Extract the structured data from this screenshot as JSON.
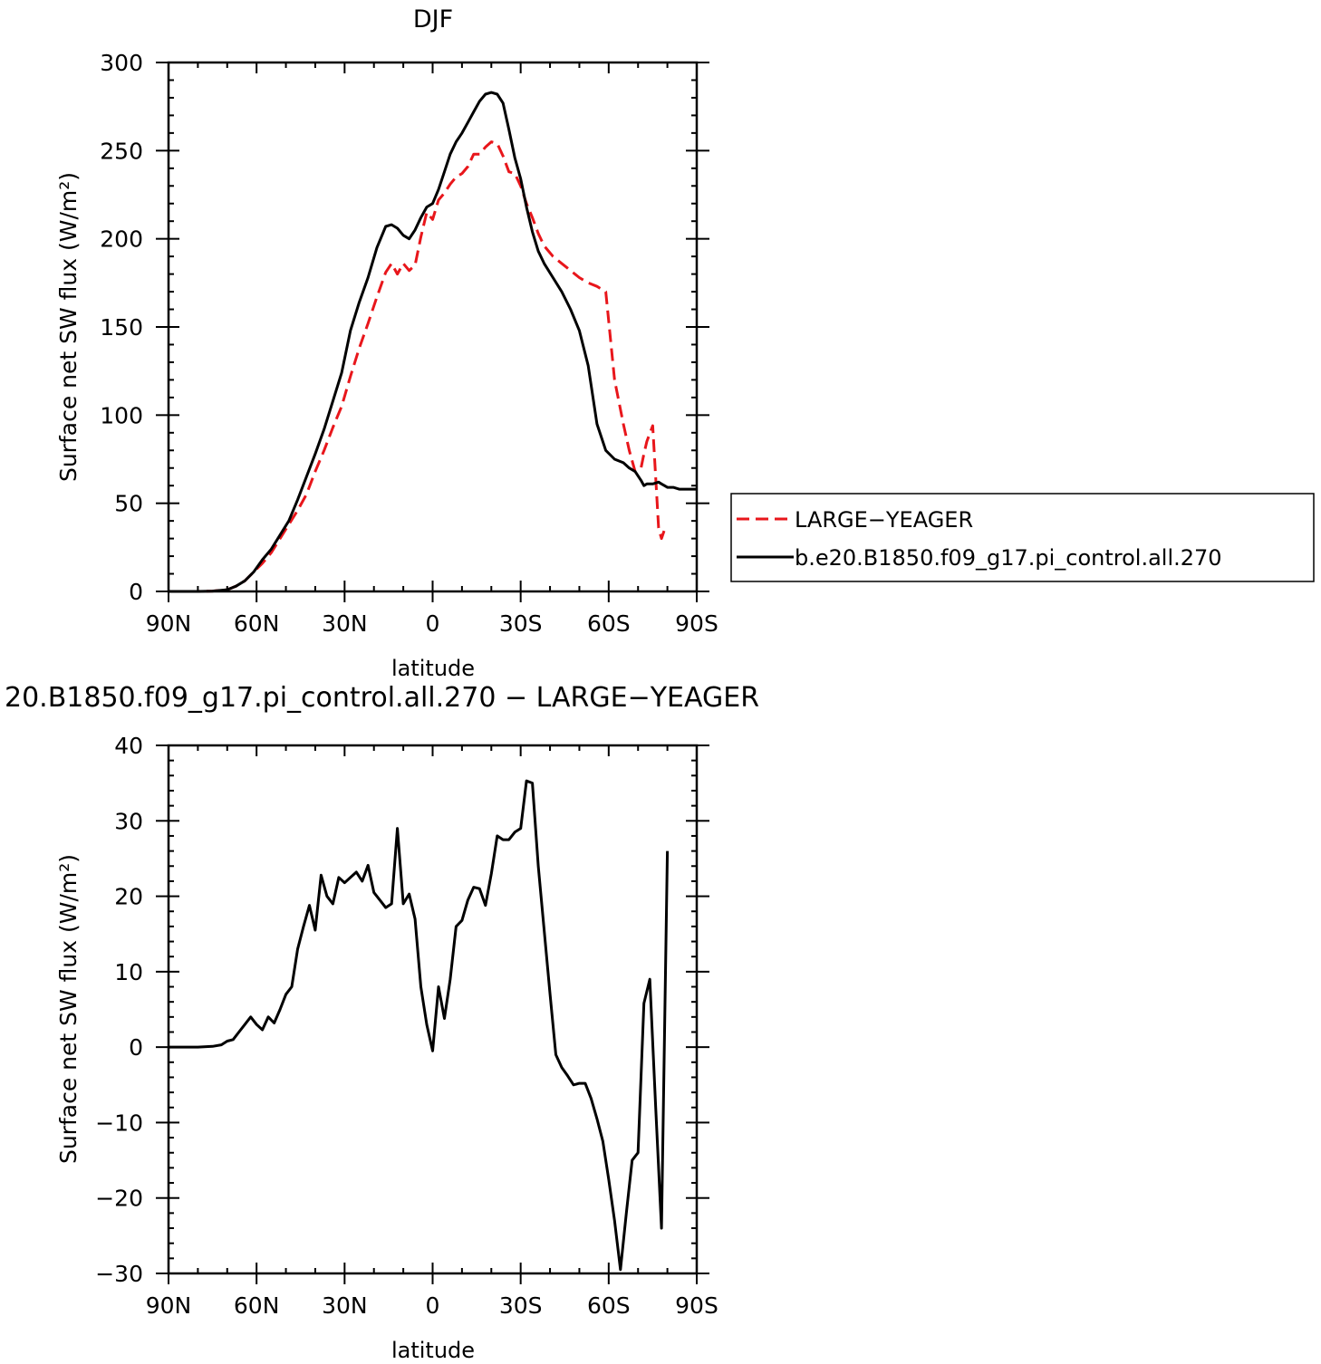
{
  "chart_data": [
    {
      "type": "line",
      "title": "DJF",
      "xlabel": "latitude",
      "ylabel": "Surface net SW flux (W/m²)",
      "xlim": [
        -90,
        90
      ],
      "ylim": [
        0,
        300
      ],
      "x_ticks": [
        -90,
        -60,
        -30,
        0,
        30,
        60,
        90
      ],
      "x_tick_labels": [
        "90N",
        "60N",
        "30N",
        "0",
        "30S",
        "60S",
        "90S"
      ],
      "y_ticks": [
        0,
        50,
        100,
        150,
        200,
        250,
        300
      ],
      "y_tick_labels": [
        "0",
        "50",
        "100",
        "150",
        "200",
        "250",
        "300"
      ],
      "legend_position": "right",
      "series": [
        {
          "name": "LARGE−YEAGER",
          "color": "#e8161b",
          "dash": "dashed",
          "x": [
            -90,
            -80,
            -75,
            -70,
            -67,
            -64,
            -61,
            -58,
            -55,
            -52,
            -49,
            -46,
            -43,
            -40,
            -37,
            -34,
            -31,
            -28,
            -25,
            -22,
            -19,
            -16,
            -14,
            -12,
            -10,
            -8,
            -6,
            -4,
            -2,
            0,
            2,
            4,
            6,
            8,
            10,
            12,
            14,
            16,
            18,
            20,
            22,
            24,
            26,
            28,
            30,
            32,
            34,
            36,
            38,
            41,
            44,
            47,
            50,
            53,
            56,
            59,
            62,
            65,
            67,
            69,
            71,
            72,
            73,
            75,
            77,
            78,
            79,
            80
          ],
          "y": [
            0,
            0,
            0.2,
            1,
            3,
            6,
            11,
            16,
            22,
            30,
            38,
            46,
            55,
            68,
            80,
            93,
            105,
            122,
            138,
            152,
            167,
            181,
            186,
            180,
            186,
            182,
            185,
            201,
            215,
            211,
            222,
            226,
            231,
            235,
            237,
            241,
            248,
            248,
            252,
            255,
            254,
            247,
            238,
            237,
            230,
            220,
            212,
            203,
            196,
            190,
            186,
            182,
            178,
            175,
            173,
            170,
            120,
            95,
            80,
            68,
            70,
            78,
            85,
            94,
            36,
            30,
            35,
            36
          ]
        },
        {
          "name": "b.e20.B1850.f09_g17.pi_control.all.270",
          "color": "#000000",
          "dash": "solid",
          "x": [
            -90,
            -80,
            -75,
            -70,
            -67,
            -64,
            -61,
            -58,
            -55,
            -52,
            -49,
            -46,
            -43,
            -40,
            -37,
            -34,
            -31,
            -28,
            -25,
            -22,
            -19,
            -16,
            -14,
            -12,
            -10,
            -8,
            -6,
            -4,
            -2,
            0,
            2,
            4,
            6,
            8,
            10,
            12,
            14,
            16,
            18,
            20,
            22,
            24,
            26,
            28,
            30,
            32,
            34,
            36,
            38,
            41,
            44,
            47,
            50,
            53,
            56,
            59,
            62,
            65,
            67,
            69,
            71,
            72,
            73,
            75,
            77,
            78,
            79,
            80,
            82,
            84,
            86,
            88,
            90
          ],
          "y": [
            0,
            0,
            0.2,
            1,
            3,
            6,
            11,
            18,
            24,
            32,
            40,
            52,
            65,
            78,
            92,
            108,
            124,
            148,
            164,
            178,
            195,
            207,
            208,
            206,
            202,
            200,
            205,
            212,
            218,
            220,
            228,
            238,
            248,
            255,
            260,
            266,
            272,
            278,
            282,
            283,
            282,
            277,
            262,
            246,
            234,
            218,
            204,
            193,
            186,
            178,
            170,
            160,
            148,
            128,
            95,
            80,
            75,
            73,
            70,
            68,
            63,
            60,
            61,
            61,
            62,
            61,
            60,
            59,
            59,
            58,
            58,
            58,
            58
          ]
        }
      ]
    },
    {
      "type": "line",
      "title": "20.B1850.f09_g17.pi_control.all.270 − LARGE−YEAGER",
      "xlabel": "latitude",
      "ylabel": "Surface net SW flux (W/m²)",
      "xlim": [
        -90,
        90
      ],
      "ylim": [
        -30,
        40
      ],
      "x_ticks": [
        -90,
        -60,
        -30,
        0,
        30,
        60,
        90
      ],
      "x_tick_labels": [
        "90N",
        "60N",
        "30N",
        "0",
        "30S",
        "60S",
        "90S"
      ],
      "y_ticks": [
        -30,
        -20,
        -10,
        0,
        10,
        20,
        30,
        40
      ],
      "y_tick_labels": [
        "−30",
        "−20",
        "−10",
        "0",
        "10",
        "20",
        "30",
        "40"
      ],
      "series": [
        {
          "name": "",
          "color": "#000000",
          "dash": "solid",
          "x": [
            -90,
            -80,
            -75,
            -72,
            -70,
            -68,
            -66,
            -64,
            -62,
            -60,
            -58,
            -56,
            -54,
            -52,
            -50,
            -48,
            -46,
            -44,
            -42,
            -40,
            -38,
            -36,
            -34,
            -32,
            -30,
            -28,
            -26,
            -24,
            -22,
            -20,
            -18,
            -16,
            -14,
            -12,
            -10,
            -8,
            -6,
            -4,
            -2,
            0,
            2,
            4,
            6,
            8,
            10,
            12,
            14,
            16,
            18,
            20,
            22,
            24,
            26,
            28,
            30,
            32,
            34,
            36,
            40,
            42,
            44,
            46,
            48,
            50,
            52,
            54,
            56,
            58,
            60,
            62,
            64,
            66,
            68,
            70,
            72,
            74,
            76,
            78,
            80
          ],
          "y": [
            0,
            0,
            0.1,
            0.3,
            0.8,
            1,
            2,
            3,
            4,
            3,
            2.3,
            4,
            3.2,
            5,
            7,
            8,
            13,
            16,
            18.8,
            15.5,
            22.8,
            20,
            19,
            22.5,
            21.8,
            22.5,
            23.2,
            22,
            24.1,
            20.5,
            19.5,
            18.5,
            19,
            29,
            19,
            20.3,
            17,
            8,
            3,
            -0.5,
            8,
            3.8,
            9,
            16,
            16.8,
            19.5,
            21.2,
            21,
            18.8,
            23,
            28,
            27.5,
            27.5,
            28.5,
            29,
            35.3,
            35,
            24,
            7,
            -1,
            -2.7,
            -3.8,
            -5,
            -4.8,
            -4.8,
            -6.8,
            -9.5,
            -12.5,
            -17.5,
            -23,
            -29.5,
            -22,
            -15,
            -14,
            5.8,
            9,
            -8,
            -24,
            26
          ]
        }
      ]
    }
  ]
}
